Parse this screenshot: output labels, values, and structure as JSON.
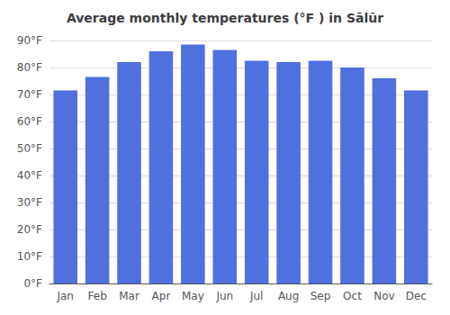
{
  "chart_data": {
    "type": "bar",
    "title": "Average monthly temperatures (°F ) in Sālūr",
    "categories": [
      "Jan",
      "Feb",
      "Mar",
      "Apr",
      "May",
      "Jun",
      "Jul",
      "Aug",
      "Sep",
      "Oct",
      "Nov",
      "Dec"
    ],
    "values": [
      71.5,
      76.5,
      82,
      86,
      88.5,
      86.5,
      82.5,
      82,
      82.5,
      80,
      76,
      71.5
    ],
    "ylim": [
      0,
      90
    ],
    "yticks": [
      {
        "value": 0,
        "label": "0°F"
      },
      {
        "value": 10,
        "label": "10°F"
      },
      {
        "value": 20,
        "label": "20°F"
      },
      {
        "value": 30,
        "label": "30°F"
      },
      {
        "value": 40,
        "label": "40°F"
      },
      {
        "value": 50,
        "label": "50°F"
      },
      {
        "value": 60,
        "label": "60°F"
      },
      {
        "value": 70,
        "label": "70°F"
      },
      {
        "value": 80,
        "label": "80°F"
      },
      {
        "value": 90,
        "label": "90°F"
      }
    ],
    "grid": true
  }
}
